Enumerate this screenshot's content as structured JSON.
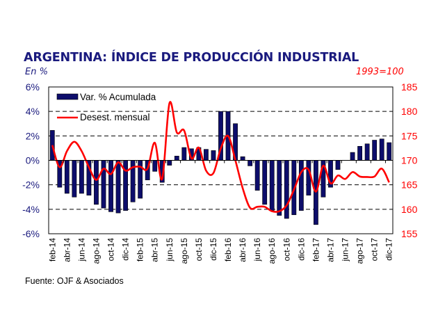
{
  "header": {
    "title": "ARGENTINA: ÍNDICE DE PRODUCCIÓN INDUSTRIAL",
    "left_unit": "En %",
    "right_unit": "1993=100"
  },
  "footer": {
    "source": "Fuente: OJF & Asociados"
  },
  "colors": {
    "bar": "#0d0d6b",
    "line": "#ff0000",
    "left_axis_text": "#1a1a7e",
    "right_axis_text": "#ff0000"
  },
  "chart_data": {
    "type": "bar",
    "title": "ARGENTINA: ÍNDICE DE PRODUCCIÓN INDUSTRIAL",
    "x": [
      "feb-14",
      "mar-14",
      "abr-14",
      "may-14",
      "jun-14",
      "jul-14",
      "ago-14",
      "sep-14",
      "oct-14",
      "nov-14",
      "dic-14",
      "ene-15",
      "feb-15",
      "mar-15",
      "abr-15",
      "may-15",
      "jun-15",
      "jul-15",
      "ago-15",
      "sep-15",
      "oct-15",
      "nov-15",
      "dic-15",
      "ene-16",
      "feb-16",
      "mar-16",
      "abr-16",
      "may-16",
      "jun-16",
      "jul-16",
      "ago-16",
      "sep-16",
      "oct-16",
      "nov-16",
      "dic-16",
      "ene-17",
      "feb-17",
      "mar-17",
      "abr-17",
      "may-17",
      "jun-17",
      "jul-17",
      "ago-17",
      "sep-17",
      "oct-17",
      "nov-17",
      "dic-17"
    ],
    "tick_labels": [
      "feb-14",
      "abr-14",
      "jun-14",
      "ago-14",
      "oct-14",
      "dic-14",
      "feb-15",
      "abr-15",
      "jun-15",
      "ago-15",
      "oct-15",
      "dic-15",
      "feb-16",
      "abr-16",
      "jun-16",
      "ago-16",
      "oct-16",
      "dic-16",
      "feb-17",
      "abr-17",
      "jun-17",
      "ago-17",
      "oct-17",
      "dic-17"
    ],
    "series": [
      {
        "name": "Var. % Acumulada",
        "type": "bar",
        "axis": "left",
        "values": [
          2.45,
          -2.2,
          -2.7,
          -3.0,
          -2.7,
          -2.85,
          -3.6,
          -3.9,
          -4.2,
          -4.3,
          -4.1,
          -3.4,
          -3.1,
          -1.6,
          -0.9,
          -1.8,
          -0.4,
          0.35,
          1.05,
          0.95,
          1.05,
          0.9,
          0.8,
          4.0,
          4.0,
          3.0,
          0.3,
          -0.45,
          -2.45,
          -3.6,
          -4.1,
          -4.5,
          -4.75,
          -4.45,
          -4.1,
          -2.85,
          -5.25,
          -3.0,
          -2.2,
          -0.75,
          0.0,
          0.65,
          1.15,
          1.35,
          1.65,
          1.75,
          1.45
        ]
      },
      {
        "name": "Desest. mensual",
        "type": "line",
        "axis": "right",
        "values": [
          173.1,
          168.6,
          171.9,
          173.8,
          171.9,
          168.6,
          166.0,
          168.3,
          167.2,
          169.6,
          167.9,
          168.6,
          168.7,
          168.3,
          173.6,
          166.2,
          181.7,
          175.7,
          176.1,
          170.4,
          172.6,
          167.9,
          167.4,
          172.4,
          175.0,
          170.0,
          164.3,
          160.3,
          160.5,
          160.5,
          159.6,
          159.6,
          160.8,
          164.0,
          167.6,
          168.1,
          163.6,
          168.9,
          165.3,
          166.9,
          166.2,
          167.6,
          166.7,
          166.6,
          166.7,
          168.3,
          165.5
        ]
      }
    ],
    "left_axis": {
      "label": "En %",
      "ylim": [
        -6,
        6
      ],
      "ticks": [
        "-6%",
        "-4%",
        "-2%",
        "0%",
        "2%",
        "4%",
        "6%"
      ],
      "tick_values": [
        -6,
        -4,
        -2,
        0,
        2,
        4,
        6
      ]
    },
    "right_axis": {
      "label": "1993=100",
      "ylim": [
        155,
        185
      ],
      "ticks": [
        "155",
        "160",
        "165",
        "170",
        "175",
        "180",
        "185"
      ],
      "tick_values": [
        155,
        160,
        165,
        170,
        175,
        180,
        185
      ]
    },
    "grid": "dashed horizontal",
    "legend": {
      "position": "top-left",
      "entries": [
        "Var. % Acumulada",
        "Desest. mensual"
      ]
    }
  }
}
